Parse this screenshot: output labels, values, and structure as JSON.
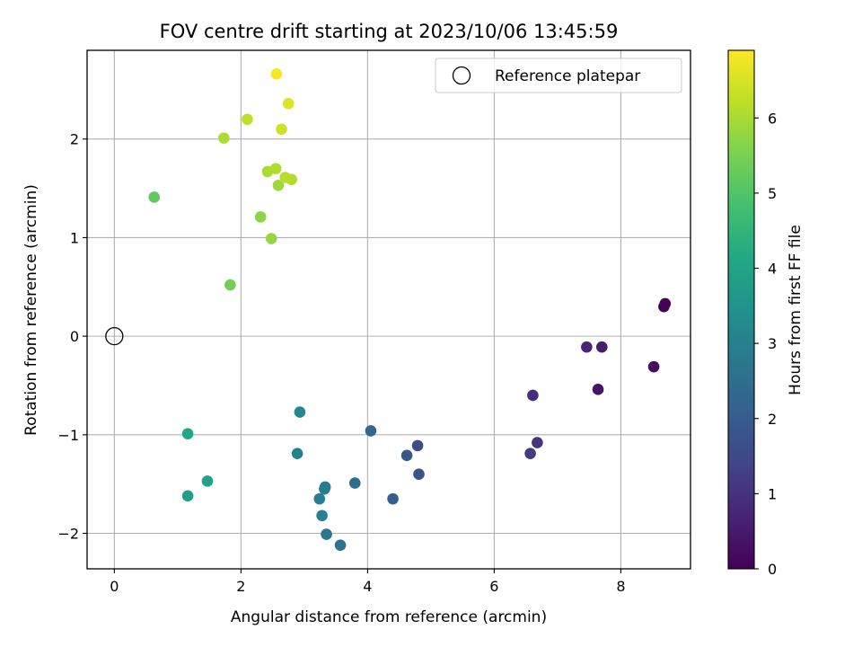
{
  "chart_data": {
    "type": "scatter",
    "title": "FOV centre drift starting at 2023/10/06 13:45:59",
    "xlabel": "Angular distance from reference (arcmin)",
    "ylabel": "Rotation from reference (arcmin)",
    "xlim": [
      -0.43,
      9.1
    ],
    "ylim": [
      -2.36,
      2.9
    ],
    "xticks": [
      0,
      2,
      4,
      6,
      8
    ],
    "yticks": [
      -2,
      -1,
      0,
      1,
      2
    ],
    "xtick_labels": [
      "0",
      "2",
      "4",
      "6",
      "8"
    ],
    "ytick_labels": [
      "−2",
      "−1",
      "0",
      "1",
      "2"
    ],
    "grid": true,
    "legend": {
      "position": "top-right",
      "entries": [
        {
          "label": "Reference platepar",
          "marker": "open-circle"
        }
      ]
    },
    "reference_point": {
      "x": 0,
      "y": 0
    },
    "colorbar": {
      "label": "Hours from first FF file",
      "colormap": "viridis",
      "range": [
        0,
        6.9
      ],
      "ticks": [
        0,
        1,
        2,
        3,
        4,
        5,
        6
      ],
      "tick_labels": [
        "0",
        "1",
        "2",
        "3",
        "4",
        "5",
        "6"
      ]
    },
    "points": [
      {
        "x": 8.7,
        "y": 0.33,
        "hours": 0.0
      },
      {
        "x": 8.68,
        "y": 0.3,
        "hours": 0.05
      },
      {
        "x": 8.52,
        "y": -0.31,
        "hours": 0.2
      },
      {
        "x": 7.64,
        "y": -0.54,
        "hours": 0.4
      },
      {
        "x": 7.7,
        "y": -0.11,
        "hours": 0.55
      },
      {
        "x": 7.46,
        "y": -0.11,
        "hours": 0.7
      },
      {
        "x": 6.61,
        "y": -0.6,
        "hours": 0.9
      },
      {
        "x": 6.68,
        "y": -1.08,
        "hours": 1.05
      },
      {
        "x": 6.57,
        "y": -1.19,
        "hours": 1.2
      },
      {
        "x": 4.79,
        "y": -1.11,
        "hours": 1.6
      },
      {
        "x": 4.81,
        "y": -1.4,
        "hours": 1.75
      },
      {
        "x": 4.62,
        "y": -1.21,
        "hours": 1.9
      },
      {
        "x": 4.4,
        "y": -1.65,
        "hours": 2.1
      },
      {
        "x": 4.05,
        "y": -0.96,
        "hours": 2.3
      },
      {
        "x": 3.8,
        "y": -1.49,
        "hours": 2.45
      },
      {
        "x": 3.57,
        "y": -2.12,
        "hours": 2.6
      },
      {
        "x": 3.35,
        "y": -2.01,
        "hours": 2.7
      },
      {
        "x": 3.33,
        "y": -1.53,
        "hours": 2.8
      },
      {
        "x": 3.32,
        "y": -1.55,
        "hours": 2.85
      },
      {
        "x": 3.24,
        "y": -1.65,
        "hours": 2.9
      },
      {
        "x": 3.28,
        "y": -1.82,
        "hours": 2.95
      },
      {
        "x": 2.89,
        "y": -1.19,
        "hours": 3.05
      },
      {
        "x": 2.93,
        "y": -0.77,
        "hours": 3.2
      },
      {
        "x": 1.16,
        "y": -1.62,
        "hours": 3.8
      },
      {
        "x": 1.47,
        "y": -1.47,
        "hours": 3.95
      },
      {
        "x": 1.16,
        "y": -0.99,
        "hours": 4.15
      },
      {
        "x": 0.63,
        "y": 1.41,
        "hours": 5.2
      },
      {
        "x": 1.83,
        "y": 0.52,
        "hours": 5.4
      },
      {
        "x": 2.31,
        "y": 1.21,
        "hours": 5.7
      },
      {
        "x": 2.48,
        "y": 0.99,
        "hours": 5.8
      },
      {
        "x": 2.59,
        "y": 1.53,
        "hours": 5.9
      },
      {
        "x": 2.42,
        "y": 1.67,
        "hours": 6.0
      },
      {
        "x": 2.55,
        "y": 1.7,
        "hours": 6.05
      },
      {
        "x": 2.8,
        "y": 1.59,
        "hours": 6.1
      },
      {
        "x": 2.7,
        "y": 1.61,
        "hours": 6.15
      },
      {
        "x": 1.73,
        "y": 2.01,
        "hours": 6.05
      },
      {
        "x": 2.1,
        "y": 2.2,
        "hours": 6.2
      },
      {
        "x": 2.64,
        "y": 2.1,
        "hours": 6.4
      },
      {
        "x": 2.75,
        "y": 2.36,
        "hours": 6.55
      },
      {
        "x": 2.56,
        "y": 2.66,
        "hours": 6.85
      }
    ]
  }
}
